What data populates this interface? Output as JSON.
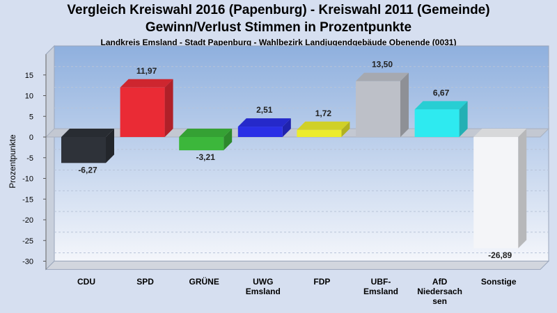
{
  "chart_data": {
    "type": "bar",
    "title": "Vergleich Kreiswahl 2016 (Papenburg) - Kreiswahl 2011 (Gemeinde)",
    "subtitle": "Gewinn/Verlust Stimmen in Prozentpunkte",
    "subsubtitle": "Landkreis Emsland - Stadt Papenburg - Wahlbezirk Landjugendgebäude Obenende (0031)",
    "ylabel": "Prozentpunkte",
    "xlabel": "",
    "ylim": [
      -32,
      20
    ],
    "yticks": [
      15,
      10,
      5,
      0,
      -5,
      -10,
      -15,
      -20,
      -25,
      -30
    ],
    "grid": true,
    "categories": [
      "CDU",
      "SPD",
      "GRÜNE",
      "UWG Emsland",
      "FDP",
      "UBF-Emsland",
      "AfD Niedersachsen",
      "Sonstige"
    ],
    "category_lines": [
      [
        "CDU"
      ],
      [
        "SPD"
      ],
      [
        "GRÜNE"
      ],
      [
        "UWG",
        "Emsland"
      ],
      [
        "FDP"
      ],
      [
        "UBF-",
        "Emsland"
      ],
      [
        "AfD",
        "Niedersach",
        "sen"
      ],
      [
        "Sonstige"
      ]
    ],
    "values": [
      -6.27,
      11.97,
      -3.21,
      2.51,
      1.72,
      13.5,
      6.67,
      -26.89
    ],
    "value_labels": [
      "-6,27",
      "11,97",
      "-3,21",
      "2,51",
      "1,72",
      "13,50",
      "6,67",
      "-26,89"
    ],
    "colors": [
      "#2e3239",
      "#ea2b35",
      "#3cb73b",
      "#2a2fe6",
      "#ecec2c",
      "#bdc0c8",
      "#2eeaf0",
      "#f4f5f8"
    ]
  }
}
